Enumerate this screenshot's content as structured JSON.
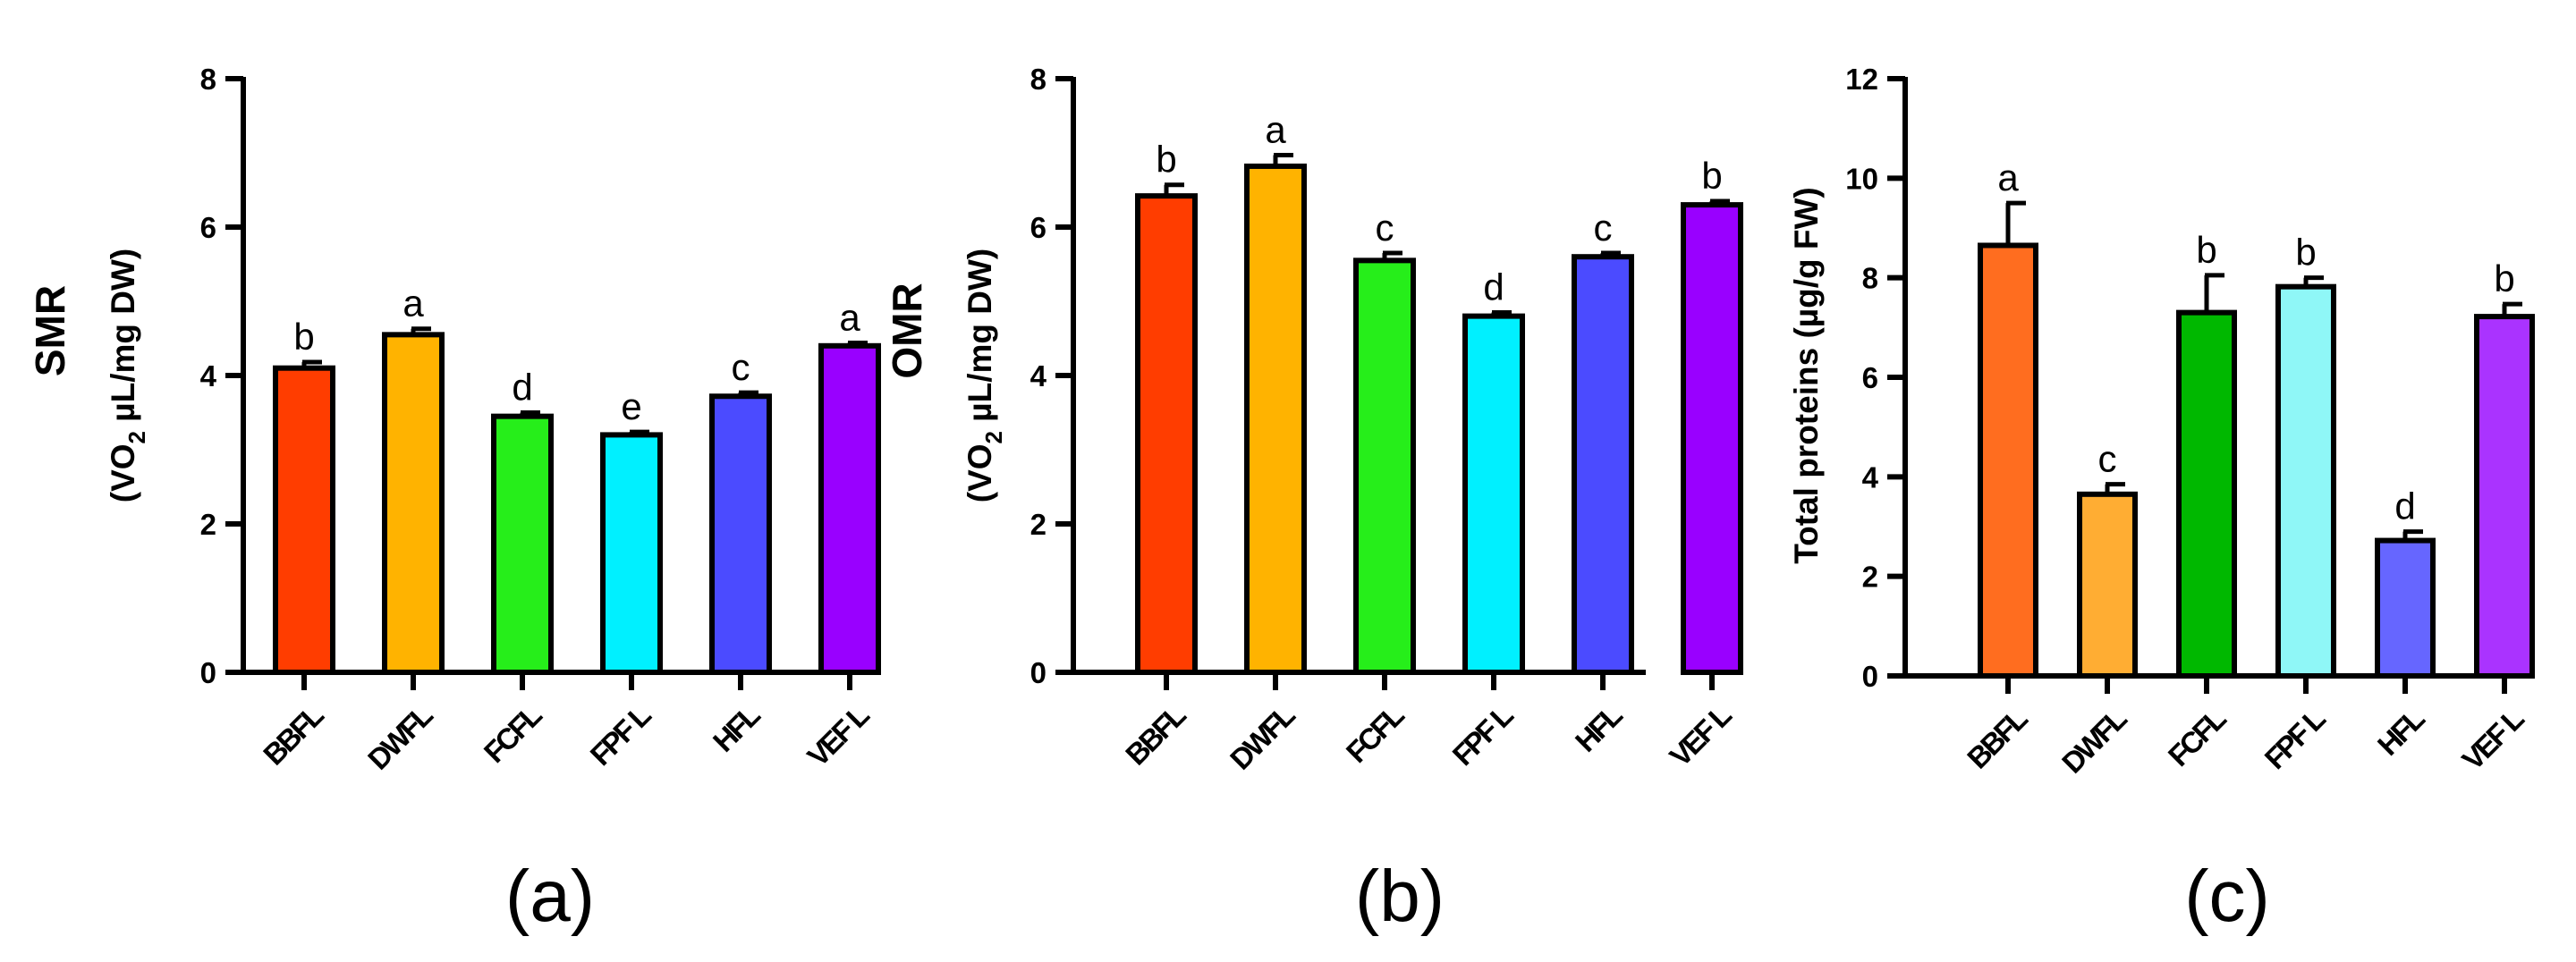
{
  "chart_data": [
    {
      "type": "bar",
      "panel_label": "(a)",
      "ylabel": "SMR",
      "ylabel_sub": "(VO2 µL/mg DW)",
      "ylabel_sub_parts": [
        "(VO",
        "2",
        " µL/mg DW)"
      ],
      "categories": [
        "BBFL",
        "DWFL",
        "FCFL",
        "FPF L",
        "HFL",
        "VEF L"
      ],
      "values": [
        4.1,
        4.55,
        3.45,
        3.2,
        3.72,
        4.4
      ],
      "errors": [
        0.08,
        0.08,
        0.05,
        0.04,
        0.05,
        0.04
      ],
      "letters": [
        "b",
        "a",
        "d",
        "e",
        "c",
        "a"
      ],
      "colors": [
        "#ff3d00",
        "#ffb300",
        "#26ee1a",
        "#00f0ff",
        "#4b4bff",
        "#9900ff"
      ],
      "ylim": [
        0,
        8
      ],
      "yticks": [
        "0",
        "2",
        "4",
        "6",
        "8"
      ]
    },
    {
      "type": "bar",
      "panel_label": "(b)",
      "ylabel": "OMR",
      "ylabel_sub": "(VO2 µL/mg DW)",
      "ylabel_sub_parts": [
        "(VO",
        "2",
        " µL/mg DW)"
      ],
      "categories": [
        "BBFL",
        "DWFL",
        "FCFL",
        "FPF L",
        "HFL",
        "VEF L"
      ],
      "values": [
        6.42,
        6.82,
        5.55,
        4.8,
        5.6,
        6.3
      ],
      "errors": [
        0.15,
        0.15,
        0.1,
        0.05,
        0.05,
        0.05
      ],
      "letters": [
        "b",
        "a",
        "c",
        "d",
        "c",
        "b"
      ],
      "colors": [
        "#ff3d00",
        "#ffb300",
        "#26ee1a",
        "#00f0ff",
        "#4b4bff",
        "#9900ff"
      ],
      "ylim": [
        0,
        8
      ],
      "yticks": [
        "0",
        "2",
        "4",
        "6",
        "8"
      ]
    },
    {
      "type": "bar",
      "panel_label": "(c)",
      "ylabel": "Total proteins (µg/g FW)",
      "ylabel_sub": "",
      "ylabel_sub_parts": [],
      "categories": [
        "BBFL",
        "DWFL",
        "FCFL",
        "FPF L",
        "HFL",
        "VEF L"
      ],
      "values": [
        8.65,
        3.65,
        7.3,
        7.82,
        2.72,
        7.22
      ],
      "errors": [
        0.85,
        0.2,
        0.75,
        0.18,
        0.18,
        0.25
      ],
      "letters": [
        "a",
        "c",
        "b",
        "b",
        "d",
        "b"
      ],
      "colors": [
        "#ff6d1f",
        "#ffad33",
        "#00b800",
        "#8ff7f7",
        "#6666ff",
        "#aa33ff"
      ],
      "ylim": [
        0,
        12
      ],
      "yticks": [
        "0",
        "2",
        "4",
        "6",
        "8",
        "10",
        "12"
      ]
    }
  ]
}
